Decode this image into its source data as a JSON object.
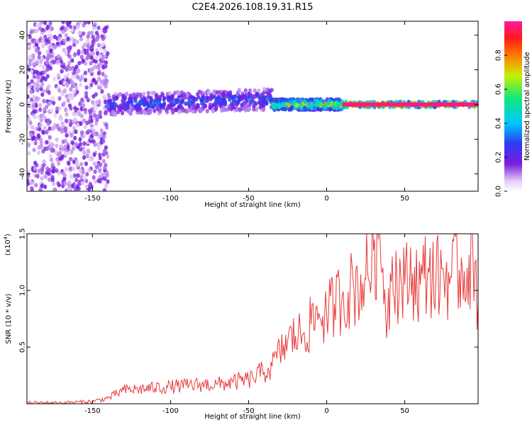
{
  "title": "C2E4.2026.108.19.31.R15",
  "chart_data": [
    {
      "type": "heatmap",
      "title": "C2E4.2026.108.19.31.R15",
      "xlabel": "Height of straight line (km)",
      "ylabel": "Frequency (Hz)",
      "xlim": [
        -192,
        97
      ],
      "ylim": [
        -50,
        48
      ],
      "x_ticks": [
        -150,
        -100,
        -50,
        0,
        50
      ],
      "x_tick_labels": [
        "-150",
        "-100",
        "-50",
        "0",
        "50"
      ],
      "y_ticks": [
        -40,
        -20,
        0,
        20,
        40
      ],
      "y_tick_labels": [
        "-40",
        "-20",
        "0",
        "20",
        "40"
      ],
      "colorbar": {
        "label": "Normalized spectral amplitude",
        "range": [
          0,
          1
        ],
        "ticks": [
          0.0,
          0.2,
          0.4,
          0.6,
          0.8
        ],
        "tick_labels": [
          "0.0",
          "0.2",
          "0.4",
          "0.6",
          "0.8"
        ]
      },
      "regions": [
        {
          "x_range": [
            -192,
            -140
          ],
          "freq_spread": 48,
          "amplitude": 0.05,
          "description_level": "scattered noise"
        },
        {
          "x_range": [
            -140,
            -35
          ],
          "freq_spread": 6,
          "amplitude": 0.25,
          "description_level": "noisy band"
        },
        {
          "x_range": [
            -35,
            10
          ],
          "freq_spread": 3,
          "amplitude": 0.6,
          "description_level": "narrowing"
        },
        {
          "x_range": [
            10,
            97
          ],
          "freq_spread": 1.5,
          "amplitude": 0.95,
          "description_level": "steady tone"
        }
      ]
    },
    {
      "type": "line",
      "xlabel": "Height of straight line (km)",
      "ylabel": "SNR (10 * v/v)",
      "multiplier_label": "(x10",
      "multiplier_exp": "4",
      "xlim": [
        -192,
        97
      ],
      "ylim": [
        0,
        1.5
      ],
      "x_ticks": [
        -150,
        -100,
        -50,
        0,
        50
      ],
      "x_tick_labels": [
        "-150",
        "-100",
        "-50",
        "0",
        "50"
      ],
      "y_ticks": [
        0.5,
        1.0,
        1.5
      ],
      "y_tick_labels": [
        "0.5",
        "1.0",
        "1.5"
      ],
      "color": "#e83a3a",
      "series": [
        {
          "name": "SNR",
          "x": [
            -192,
            -170,
            -150,
            -140,
            -130,
            -120,
            -110,
            -100,
            -90,
            -80,
            -70,
            -60,
            -50,
            -45,
            -40,
            -35,
            -30,
            -25,
            -20,
            -15,
            -10,
            -5,
            0,
            5,
            10,
            15,
            20,
            25,
            30,
            33,
            36,
            39,
            42,
            45,
            50,
            55,
            60,
            65,
            70,
            75,
            80,
            85,
            90,
            95,
            97
          ],
          "y": [
            0.01,
            0.01,
            0.02,
            0.05,
            0.12,
            0.13,
            0.14,
            0.15,
            0.16,
            0.17,
            0.17,
            0.19,
            0.21,
            0.25,
            0.28,
            0.33,
            0.45,
            0.55,
            0.6,
            0.62,
            0.7,
            0.8,
            0.78,
            0.88,
            0.95,
            1.0,
            1.05,
            1.1,
            1.35,
            1.45,
            1.2,
            0.75,
            1.3,
            1.1,
            1.05,
            1.15,
            1.05,
            1.2,
            1.1,
            1.15,
            1.12,
            1.18,
            1.2,
            1.25,
            0.9
          ]
        }
      ]
    }
  ]
}
